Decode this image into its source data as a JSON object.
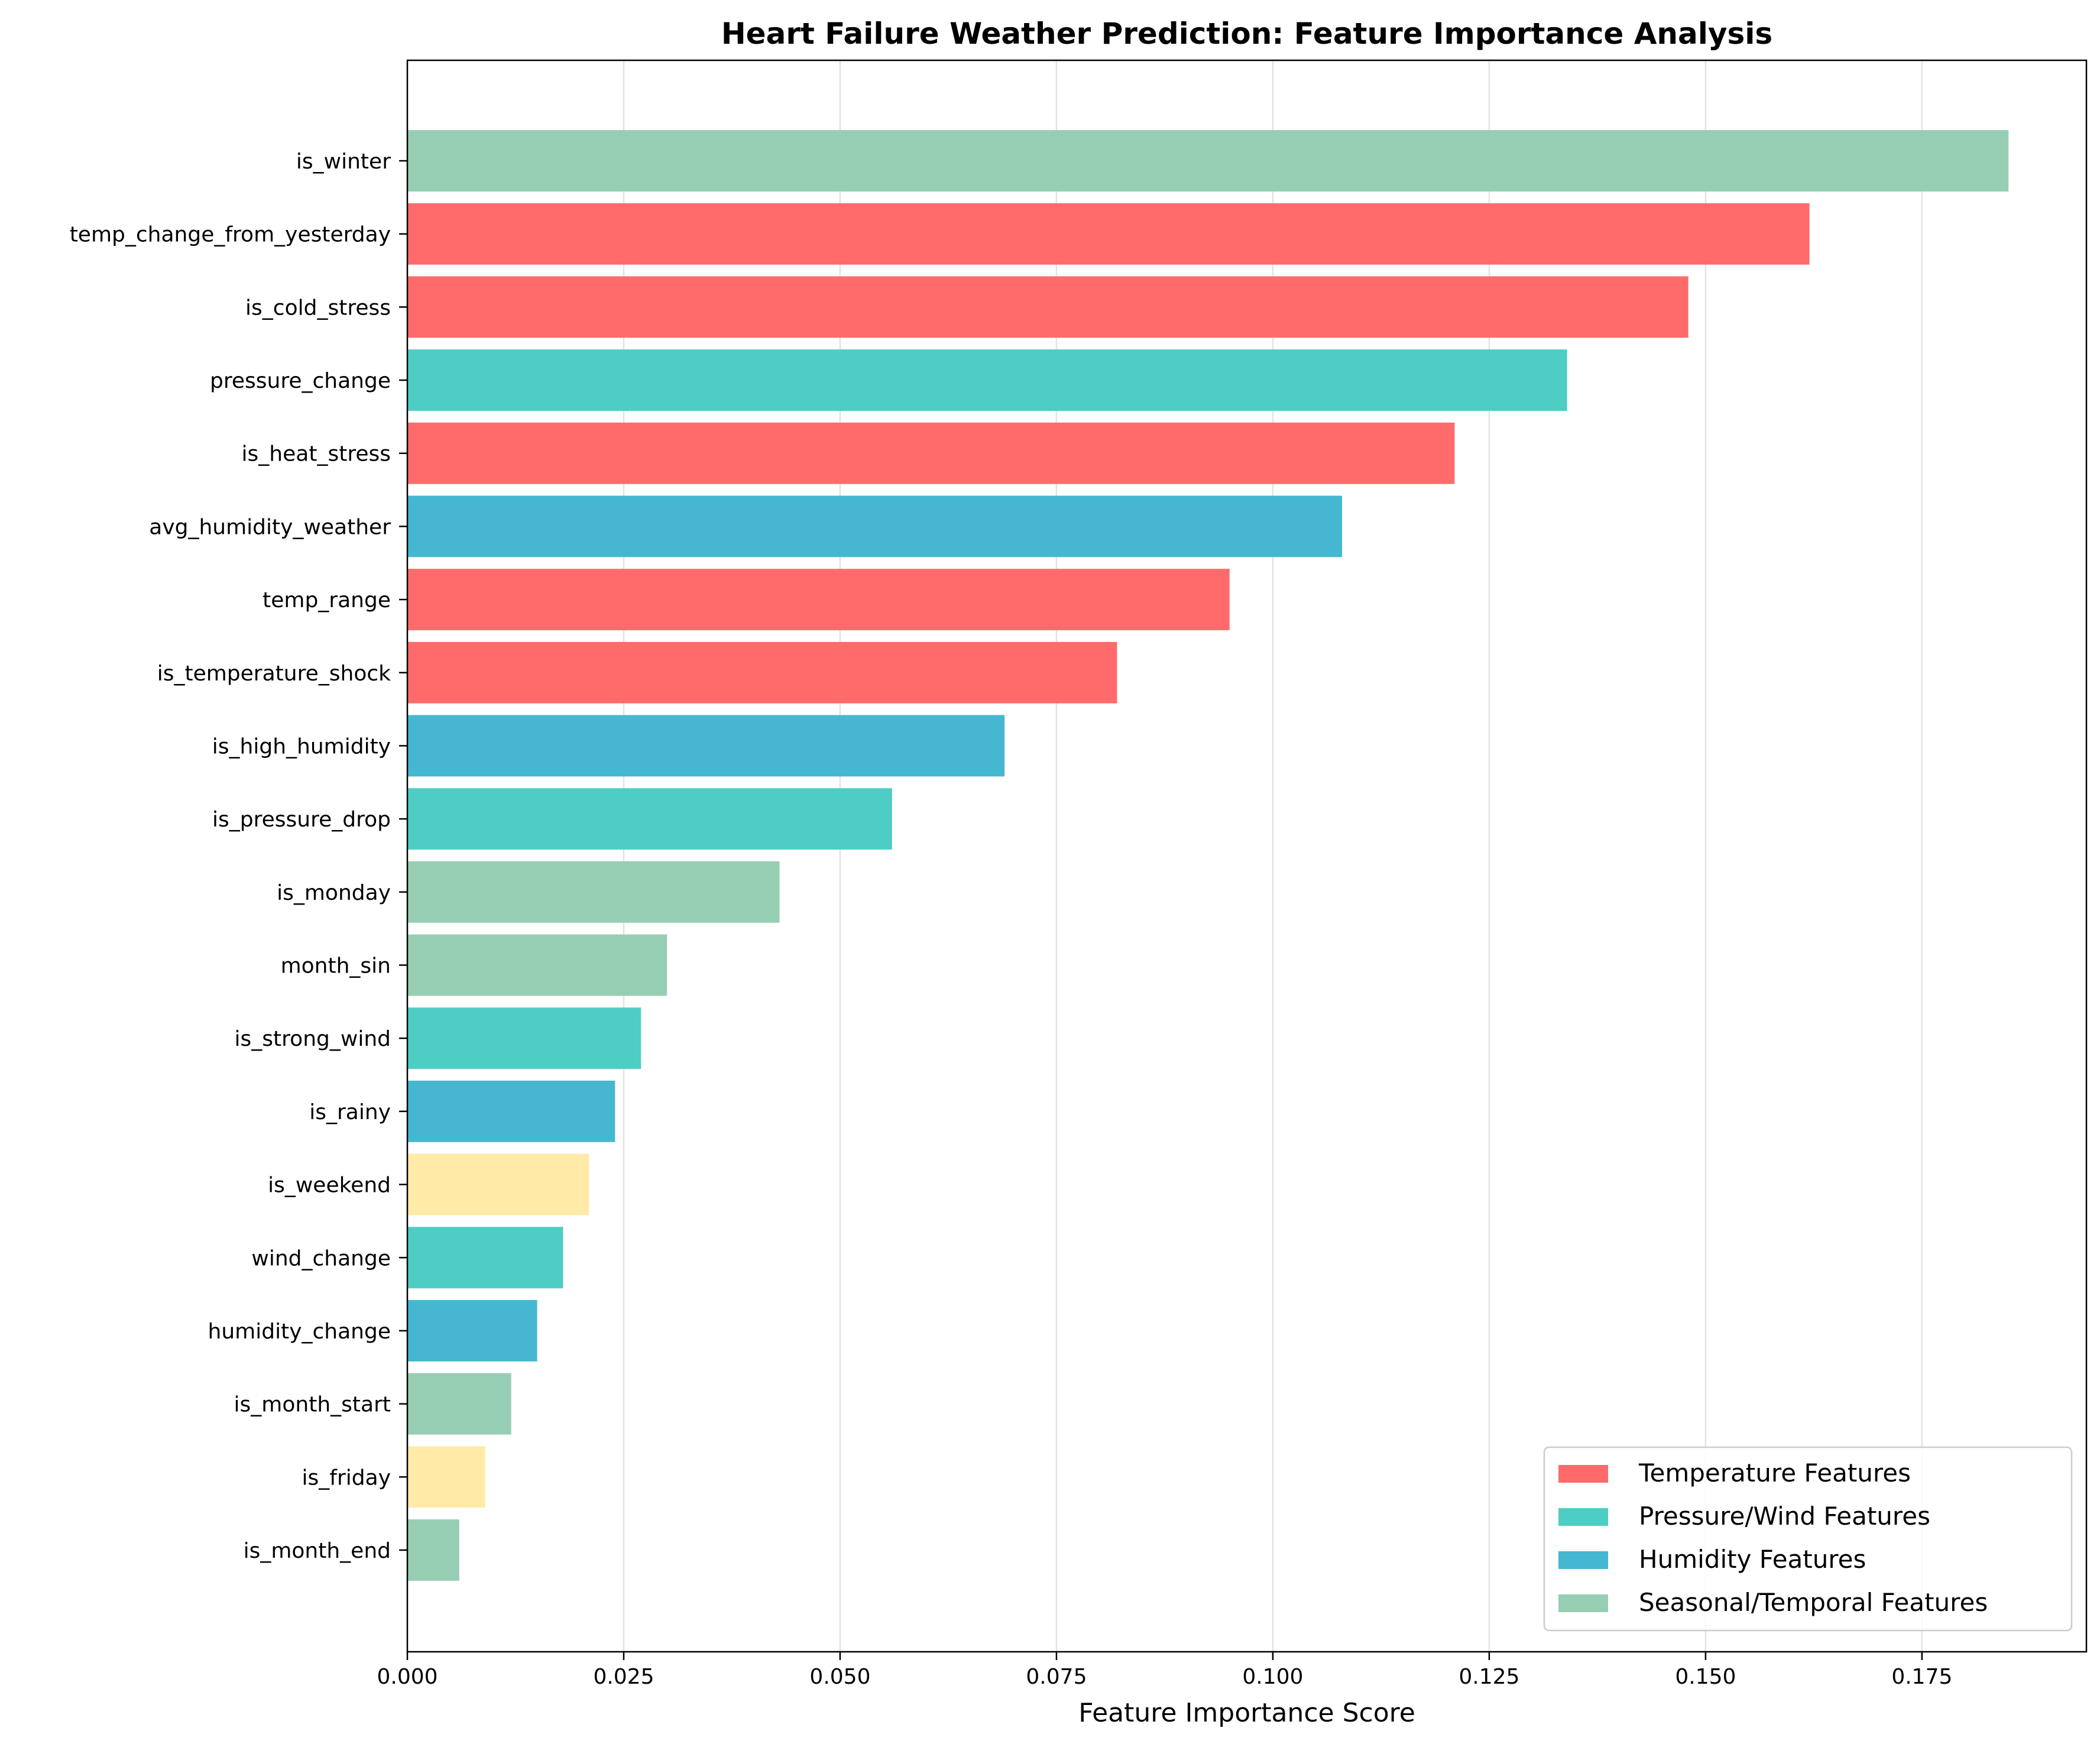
{
  "chart_data": {
    "type": "bar",
    "orientation": "horizontal",
    "title": "Heart Failure Weather Prediction: Feature Importance Analysis",
    "xlabel": "Feature Importance Score",
    "ylabel": "",
    "xlim": [
      0,
      0.194
    ],
    "xticks": [
      0.0,
      0.025,
      0.05,
      0.075,
      0.1,
      0.125,
      0.15,
      0.175
    ],
    "xtick_labels": [
      "0.000",
      "0.025",
      "0.050",
      "0.075",
      "0.100",
      "0.125",
      "0.150",
      "0.175"
    ],
    "grid": "x",
    "legend_position": "lower-right",
    "categories": [
      "is_winter",
      "temp_change_from_yesterday",
      "is_cold_stress",
      "pressure_change",
      "is_heat_stress",
      "avg_humidity_weather",
      "temp_range",
      "is_temperature_shock",
      "is_high_humidity",
      "is_pressure_drop",
      "is_monday",
      "month_sin",
      "is_strong_wind",
      "is_rainy",
      "is_weekend",
      "wind_change",
      "humidity_change",
      "is_month_start",
      "is_friday",
      "is_month_end"
    ],
    "values": [
      0.185,
      0.162,
      0.148,
      0.134,
      0.121,
      0.108,
      0.095,
      0.082,
      0.069,
      0.056,
      0.043,
      0.03,
      0.027,
      0.024,
      0.021,
      0.018,
      0.015,
      0.012,
      0.009,
      0.006
    ],
    "groups": [
      "seasonal",
      "temperature",
      "temperature",
      "pressure",
      "temperature",
      "humidity",
      "temperature",
      "temperature",
      "humidity",
      "pressure",
      "seasonal",
      "seasonal",
      "pressure",
      "humidity",
      "other",
      "pressure",
      "humidity",
      "seasonal",
      "other",
      "seasonal"
    ],
    "group_colors": {
      "temperature": "#FF6B6B",
      "pressure": "#4ECDC4",
      "humidity": "#45B7D1",
      "seasonal": "#96CEB4",
      "other": "#FFEAA7"
    },
    "legend": [
      {
        "label": "Temperature Features",
        "color": "#FF6B6B"
      },
      {
        "label": "Pressure/Wind Features",
        "color": "#4ECDC4"
      },
      {
        "label": "Humidity Features",
        "color": "#45B7D1"
      },
      {
        "label": "Seasonal/Temporal Features",
        "color": "#96CEB4"
      }
    ]
  }
}
